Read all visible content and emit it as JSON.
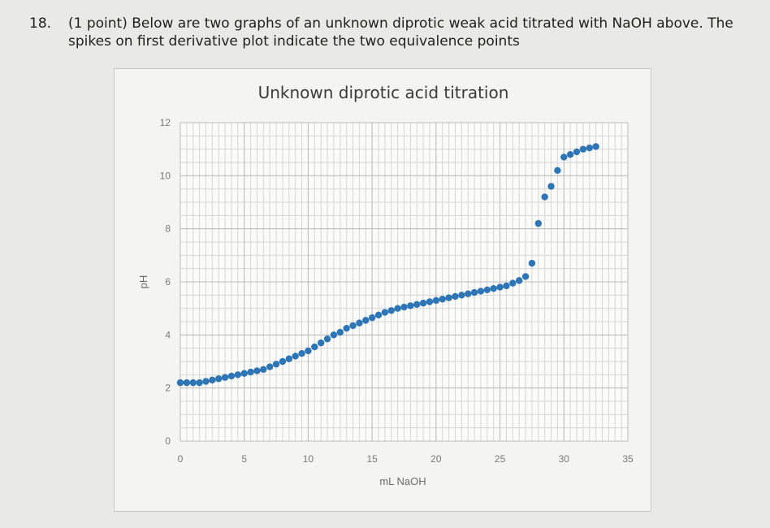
{
  "question": {
    "number": "18.",
    "text": "(1 point) Below are two graphs of an unknown diprotic weak acid titrated with NaOH above. The spikes on first derivative plot indicate the two equivalence points"
  },
  "chart_data": {
    "type": "scatter",
    "title": "Unknown diprotic acid titration",
    "xlabel": "mL NaOH",
    "ylabel": "pH",
    "xlim": [
      0,
      35
    ],
    "ylim": [
      0,
      12
    ],
    "xticks": [
      "0",
      "5",
      "10",
      "15",
      "20",
      "25",
      "30",
      "35"
    ],
    "yticks": [
      "0",
      "2",
      "4",
      "6",
      "8",
      "10",
      "12"
    ],
    "grid": true,
    "marker_color": "#2e75b6",
    "series": [
      {
        "x": [
          0,
          0.5,
          1,
          1.5,
          2,
          2.5,
          3,
          3.5,
          4,
          4.5,
          5,
          5.5,
          6,
          6.5,
          7,
          7.5,
          8,
          8.5,
          9,
          9.5,
          10,
          10.5,
          11,
          11.5,
          12,
          12.5,
          13,
          13.5,
          14,
          14.5,
          15,
          15.5,
          16,
          16.5,
          17,
          17.5,
          18,
          18.5,
          19,
          19.5,
          20,
          20.5,
          21,
          21.5,
          22,
          22.5,
          23,
          23.5,
          24,
          24.5,
          25,
          25.5,
          26,
          26.5,
          27,
          27.5,
          28,
          28.5,
          29,
          29.5,
          30,
          30.5,
          31,
          31.5,
          32,
          32.5
        ],
        "y": [
          2.2,
          2.2,
          2.2,
          2.2,
          2.25,
          2.3,
          2.35,
          2.4,
          2.45,
          2.5,
          2.55,
          2.6,
          2.65,
          2.7,
          2.8,
          2.9,
          3.0,
          3.1,
          3.2,
          3.3,
          3.4,
          3.55,
          3.7,
          3.85,
          4.0,
          4.1,
          4.25,
          4.35,
          4.45,
          4.55,
          4.65,
          4.75,
          4.85,
          4.92,
          5.0,
          5.05,
          5.1,
          5.15,
          5.2,
          5.25,
          5.3,
          5.35,
          5.4,
          5.45,
          5.5,
          5.55,
          5.6,
          5.65,
          5.7,
          5.75,
          5.8,
          5.85,
          5.95,
          6.05,
          6.2,
          6.7,
          8.2,
          9.2,
          9.6,
          10.2,
          10.7,
          10.8,
          10.9,
          11.0,
          11.05,
          11.1
        ]
      }
    ]
  }
}
